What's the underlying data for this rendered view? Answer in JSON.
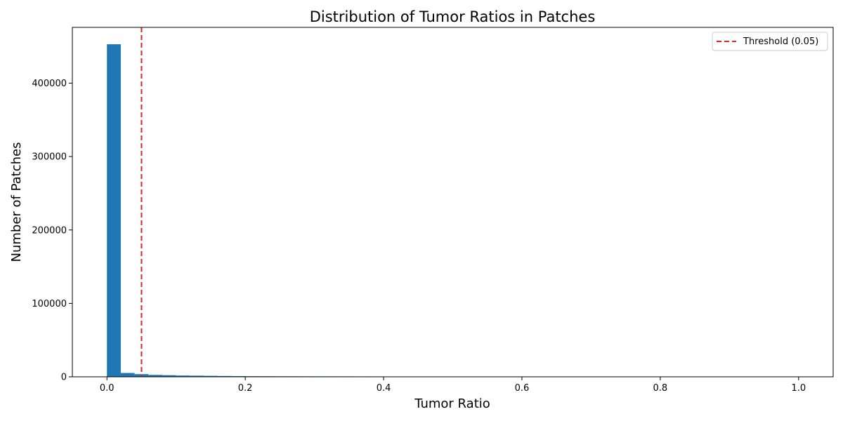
{
  "chart_data": {
    "type": "bar",
    "title": "Distribution of Tumor Ratios in Patches",
    "xlabel": "Tumor Ratio",
    "ylabel": "Number of Patches",
    "xlim": [
      -0.05,
      1.05
    ],
    "ylim": [
      0,
      476000
    ],
    "xticks": [
      0.0,
      0.2,
      0.4,
      0.6,
      0.8,
      1.0
    ],
    "xtick_labels": [
      "0.0",
      "0.2",
      "0.4",
      "0.6",
      "0.8",
      "1.0"
    ],
    "yticks": [
      0,
      100000,
      200000,
      300000,
      400000
    ],
    "ytick_labels": [
      "0",
      "100000",
      "200000",
      "300000",
      "400000"
    ],
    "bin_width": 0.02,
    "bin_starts": [
      0.0,
      0.02,
      0.04,
      0.06,
      0.08,
      0.1,
      0.12,
      0.14,
      0.16,
      0.18,
      0.2,
      0.22,
      0.24,
      0.26,
      0.28,
      0.3,
      0.32,
      0.34,
      0.36,
      0.38,
      0.4,
      0.42,
      0.44,
      0.46,
      0.48,
      0.5,
      0.52,
      0.54,
      0.56,
      0.58,
      0.6,
      0.62,
      0.64,
      0.66,
      0.68
    ],
    "values": [
      453000,
      5200,
      3600,
      2600,
      2200,
      1700,
      1500,
      1300,
      1100,
      900,
      800,
      750,
      700,
      650,
      600,
      580,
      560,
      540,
      520,
      500,
      480,
      460,
      440,
      420,
      410,
      400,
      390,
      380,
      370,
      360,
      350,
      340,
      330,
      320,
      310
    ],
    "bar_color": "#1f77b4",
    "threshold": {
      "x": 0.05,
      "label": "Threshold (0.05)",
      "color": "#d62728",
      "style": "dashed"
    },
    "legend": {
      "placement": "top-right"
    },
    "grid": false
  }
}
